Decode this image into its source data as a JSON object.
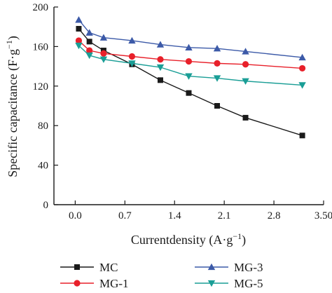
{
  "chart_data": {
    "type": "line",
    "xlabel": "Currentdensity (A·g",
    "xlabel_sup": "−1",
    "xlabel_tail": ")",
    "ylabel": "Specific capacitance (F·g",
    "ylabel_sup": "−1",
    "ylabel_tail": ")",
    "xlim": [
      -0.3,
      3.5
    ],
    "ylim": [
      0,
      200
    ],
    "xticks": [
      0.0,
      0.7,
      1.4,
      2.1,
      2.8,
      3.5
    ],
    "xtick_labels": [
      "0.0",
      "0.7",
      "1.4",
      "2.1",
      "2.8",
      "3.50"
    ],
    "yticks": [
      0,
      40,
      80,
      120,
      160,
      200
    ],
    "ytick_labels": [
      "0",
      "40",
      "80",
      "120",
      "160",
      "200"
    ],
    "x": [
      0.05,
      0.2,
      0.4,
      0.8,
      1.2,
      1.6,
      2.0,
      2.4,
      3.2
    ],
    "grid": false,
    "legend_position": "bottom",
    "series": [
      {
        "name": "MC",
        "color": "#1a1a1a",
        "marker": "square",
        "values": [
          178,
          165,
          156,
          142,
          126,
          113,
          100,
          88,
          70
        ]
      },
      {
        "name": "MG-1",
        "color": "#e8202a",
        "marker": "circle",
        "values": [
          166,
          156,
          153,
          150,
          147,
          145,
          143,
          142,
          138
        ]
      },
      {
        "name": "MG-3",
        "color": "#3c5aa8",
        "marker": "triangle-up",
        "values": [
          187,
          174,
          169,
          166,
          162,
          159,
          158,
          155,
          149
        ]
      },
      {
        "name": "MG-5",
        "color": "#1a9e96",
        "marker": "triangle-down",
        "values": [
          161,
          151,
          147,
          143,
          139,
          130,
          128,
          125,
          121
        ]
      }
    ]
  }
}
